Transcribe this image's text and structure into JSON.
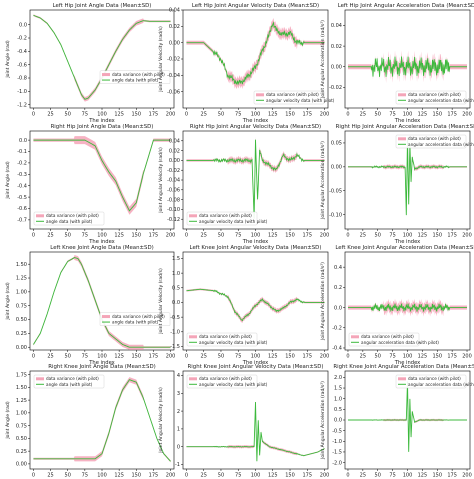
{
  "legend_labels": {
    "variance": "data variance (with pilot)",
    "angle": "angle data (with pilot)",
    "velocity": "angular velocity data (with pilot)",
    "acceleration": "angular acceleration data (with pilot)"
  },
  "colors": {
    "band": "#f4a5b8",
    "line": "#3cb93c",
    "axis": "#000000"
  },
  "chart_data": [
    {
      "type": "line",
      "title": "Left Hip Joint Angle Data (Mean±SD)",
      "xlabel": "The index",
      "ylabel": "Joint Angle (rad)",
      "xlim": [
        -5,
        205
      ],
      "ylim": [
        -1.25,
        0.22
      ],
      "xticks": [
        0,
        25,
        50,
        75,
        100,
        125,
        150,
        175,
        200
      ],
      "yticks": [
        0.0,
        -0.2,
        -0.4,
        -0.6,
        -0.8,
        -1.0,
        -1.2
      ],
      "ytick_labels": [
        "0.0",
        "-0.2",
        "-0.4",
        "-0.6",
        "-0.8",
        "-1.0",
        "-1.2"
      ],
      "legend": "center-right",
      "legend_kind": "angle",
      "noise": 0,
      "x": [
        0,
        10,
        20,
        30,
        40,
        50,
        60,
        70,
        75,
        80,
        90,
        100,
        110,
        120,
        130,
        140,
        150,
        160,
        170,
        175,
        200
      ],
      "y": [
        0.14,
        0.1,
        0.02,
        -0.12,
        -0.3,
        -0.55,
        -0.8,
        -1.05,
        -1.12,
        -1.1,
        -0.98,
        -0.8,
        -0.6,
        -0.4,
        -0.22,
        -0.08,
        0.02,
        0.06,
        0.05,
        0.05,
        0.05
      ],
      "sd": 0.035
    },
    {
      "type": "line",
      "title": "Left Hip Joint Angular Velocity Data (Mean±SD)",
      "xlabel": "The index",
      "ylabel": "Joint Angular Velocity (rad/s)",
      "xlim": [
        -5,
        205
      ],
      "ylim": [
        -0.08,
        0.04
      ],
      "xticks": [
        0,
        25,
        50,
        75,
        100,
        125,
        150,
        175,
        200
      ],
      "yticks": [
        0.04,
        0.02,
        0.0,
        -0.02,
        -0.04,
        -0.06
      ],
      "ytick_labels": [
        "0.04",
        "0.02",
        "0.00",
        "-0.02",
        "-0.04",
        "-0.06"
      ],
      "legend": "lower-right",
      "legend_kind": "velocity",
      "noise": 0.004,
      "x": [
        0,
        25,
        50,
        60,
        75,
        85,
        100,
        110,
        120,
        125,
        130,
        140,
        150,
        160,
        165,
        175,
        200
      ],
      "y": [
        0.0,
        0.0,
        -0.02,
        -0.04,
        -0.05,
        -0.045,
        -0.03,
        -0.01,
        0.01,
        0.025,
        0.015,
        0.01,
        0.012,
        0.0,
        0.0,
        0.0,
        0.0
      ],
      "sd": 0.006
    },
    {
      "type": "line",
      "title": "Left Hip Joint Angular Acceleration Data (Mean±SD)",
      "xlabel": "The index",
      "ylabel": "Joint Angular Acceleration (rad/s²)",
      "xlim": [
        -5,
        205
      ],
      "ylim": [
        -0.04,
        0.055
      ],
      "xticks": [
        0,
        25,
        50,
        75,
        100,
        125,
        150,
        175,
        200
      ],
      "yticks": [
        0.04,
        0.02,
        0.0,
        -0.02
      ],
      "ytick_labels": [
        "0.04",
        "0.02",
        "0.00",
        "-0.02"
      ],
      "legend": "lower-right",
      "legend_kind": "acceleration",
      "noise": 0.01,
      "x": [
        0,
        50,
        100,
        150,
        200
      ],
      "y": [
        0.0,
        0.0,
        0.0,
        0.0,
        0.0
      ],
      "sd": 0.006
    },
    {
      "type": "line",
      "title": "Right Hip Joint Angle Data (Mean±SD)",
      "xlabel": "The index",
      "ylabel": "Joint Angle (rad)",
      "xlim": [
        -5,
        205
      ],
      "ylim": [
        -0.78,
        0.08
      ],
      "xticks": [
        0,
        25,
        50,
        75,
        100,
        125,
        150,
        175,
        200
      ],
      "yticks": [
        0.0,
        -0.1,
        -0.2,
        -0.3,
        -0.4,
        -0.5,
        -0.6,
        -0.7
      ],
      "ytick_labels": [
        "0.0",
        "-0.1",
        "-0.2",
        "-0.3",
        "-0.4",
        "-0.5",
        "-0.6",
        "-0.7"
      ],
      "legend": "lower-left",
      "legend_kind": "angle",
      "noise": 0,
      "x": [
        0,
        25,
        50,
        75,
        90,
        100,
        110,
        120,
        130,
        140,
        150,
        160,
        170,
        175,
        200
      ],
      "y": [
        0.0,
        0.0,
        0.0,
        0.0,
        -0.05,
        -0.18,
        -0.28,
        -0.36,
        -0.5,
        -0.62,
        -0.55,
        -0.3,
        -0.1,
        0.0,
        0.0
      ],
      "sd": 0.035
    },
    {
      "type": "line",
      "title": "Right Hip Joint Angular Velocity Data (Mean±SD)",
      "xlabel": "The index",
      "ylabel": "Joint Angular Velocity (rad/s)",
      "xlim": [
        -5,
        205
      ],
      "ylim": [
        -0.14,
        0.06
      ],
      "xticks": [
        0,
        25,
        50,
        75,
        100,
        125,
        150,
        175,
        200
      ],
      "yticks": [
        0.04,
        0.02,
        0.0,
        -0.02,
        -0.04,
        -0.06,
        -0.08,
        -0.1,
        -0.12
      ],
      "ytick_labels": [
        "0.04",
        "0.02",
        "0.00",
        "-0.02",
        "-0.04",
        "-0.06",
        "-0.08",
        "-0.10",
        "-0.12"
      ],
      "legend": "lower-left",
      "legend_kind": "velocity",
      "noise": 0.004,
      "x": [
        0,
        25,
        50,
        75,
        90,
        95,
        98,
        100,
        103,
        106,
        110,
        120,
        130,
        140,
        150,
        160,
        170,
        175,
        200
      ],
      "y": [
        0.0,
        0.0,
        0.0,
        0.0,
        0.0,
        0.0,
        -0.12,
        0.04,
        -0.08,
        0.02,
        0.0,
        -0.01,
        -0.02,
        0.01,
        0.0,
        0.01,
        0.0,
        0.0,
        0.0
      ],
      "sd": 0.006
    },
    {
      "type": "line",
      "title": "Right Hip Joint Angular Acceleration Data (Mean±SD)",
      "xlabel": "The index",
      "ylabel": "Joint Angular Acceleration (rad/s²)",
      "xlim": [
        -5,
        205
      ],
      "ylim": [
        -0.13,
        0.075
      ],
      "xticks": [
        0,
        25,
        50,
        75,
        100,
        125,
        150,
        175,
        200
      ],
      "yticks": [
        0.05,
        0.0,
        -0.05,
        -0.1
      ],
      "ytick_labels": [
        "0.05",
        "0.00",
        "-0.05",
        "-0.10"
      ],
      "legend": "upper-right",
      "legend_kind": "acceleration",
      "noise": 0.002,
      "x": [
        0,
        90,
        96,
        98,
        100,
        102,
        104,
        106,
        108,
        112,
        120,
        150,
        200
      ],
      "y": [
        0.0,
        0.0,
        0.0,
        -0.1,
        0.06,
        -0.08,
        0.05,
        -0.03,
        0.02,
        -0.005,
        0.0,
        0.0,
        0.0
      ],
      "sd": 0.004
    },
    {
      "type": "line",
      "title": "Left Knee Joint Angle Data (Mean±SD)",
      "xlabel": "The index",
      "ylabel": "Joint Angle (rad)",
      "xlim": [
        -5,
        205
      ],
      "ylim": [
        -0.05,
        1.72
      ],
      "xticks": [
        0,
        25,
        50,
        75,
        100,
        125,
        150,
        175,
        200
      ],
      "yticks": [
        0.0,
        0.25,
        0.5,
        0.75,
        1.0,
        1.25,
        1.5
      ],
      "ytick_labels": [
        "0.00",
        "0.25",
        "0.50",
        "0.75",
        "1.00",
        "1.25",
        "1.50"
      ],
      "legend": "center-right",
      "legend_kind": "angle",
      "noise": 0,
      "x": [
        0,
        10,
        20,
        30,
        40,
        50,
        60,
        65,
        70,
        80,
        90,
        100,
        110,
        120,
        125,
        130,
        140,
        150,
        200
      ],
      "y": [
        0.05,
        0.25,
        0.6,
        1.0,
        1.35,
        1.55,
        1.62,
        1.6,
        1.5,
        1.2,
        0.85,
        0.5,
        0.25,
        0.15,
        0.1,
        0.05,
        0.0,
        0.0,
        0.0
      ],
      "sd": 0.045
    },
    {
      "type": "line",
      "title": "Left Knee Joint Angular Velocity Data (Mean±SD)",
      "xlabel": "The index",
      "ylabel": "Joint Angular Velocity (rad/s)",
      "xlim": [
        -5,
        205
      ],
      "ylim": [
        -1.62,
        1.72
      ],
      "xticks": [
        0,
        25,
        50,
        75,
        100,
        125,
        150,
        175,
        200
      ],
      "yticks": [
        1.5,
        1.0,
        0.5,
        0.0,
        -0.5,
        -1.0,
        -1.5
      ],
      "ytick_labels": [
        "1.5",
        "1.0",
        "0.5",
        "0.0",
        "-0.5",
        "-1.0",
        "-1.5"
      ],
      "legend": "lower-left",
      "legend_kind": "velocity",
      "noise": 0.04,
      "x": [
        0,
        20,
        40,
        60,
        70,
        80,
        90,
        100,
        110,
        120,
        130,
        140,
        150,
        160,
        170,
        175,
        200
      ],
      "y": [
        0.4,
        0.45,
        0.4,
        0.2,
        -0.3,
        -0.6,
        -0.4,
        -0.1,
        0.1,
        -0.1,
        -0.3,
        -0.2,
        0.0,
        0.1,
        0.0,
        0.0,
        0.0
      ],
      "sd": 0.08
    },
    {
      "type": "line",
      "title": "Left Knee Joint Angular Acceleration Data (Mean±SD)",
      "xlabel": "The index",
      "ylabel": "Joint Angular Acceleration (rad/s²)",
      "xlim": [
        -5,
        205
      ],
      "ylim": [
        -0.42,
        0.55
      ],
      "xticks": [
        0,
        25,
        50,
        75,
        100,
        125,
        150,
        175,
        200
      ],
      "yticks": [
        0.4,
        0.2,
        0.0,
        -0.2,
        -0.4
      ],
      "ytick_labels": [
        "0.4",
        "0.2",
        "0.0",
        "-0.2",
        "-0.4"
      ],
      "legend": "lower-left",
      "legend_kind": "acceleration",
      "noise": 0.04,
      "x": [
        0,
        50,
        100,
        150,
        200
      ],
      "y": [
        0.0,
        0.0,
        0.0,
        0.0,
        0.0
      ],
      "sd": 0.05
    },
    {
      "type": "line",
      "title": "Right Knee Joint Angle Data (Mean±SD)",
      "xlabel": "The index",
      "ylabel": "Joint Angle (rad)",
      "xlim": [
        -5,
        205
      ],
      "ylim": [
        -0.1,
        1.82
      ],
      "xticks": [
        0,
        25,
        50,
        75,
        100,
        125,
        150,
        175,
        200
      ],
      "yticks": [
        1.75,
        1.5,
        1.25,
        1.0,
        0.75,
        0.5,
        0.25,
        0.0
      ],
      "ytick_labels": [
        "1.75",
        "1.50",
        "1.25",
        "1.00",
        "0.75",
        "0.50",
        "0.25",
        "0.00"
      ],
      "legend": "upper-left",
      "legend_kind": "angle",
      "noise": 0,
      "x": [
        0,
        25,
        50,
        75,
        90,
        100,
        110,
        120,
        130,
        140,
        150,
        160,
        170,
        180,
        190,
        200
      ],
      "y": [
        0.1,
        0.1,
        0.1,
        0.1,
        0.1,
        0.2,
        0.6,
        1.1,
        1.45,
        1.65,
        1.6,
        1.3,
        0.9,
        0.5,
        0.2,
        0.05
      ],
      "sd": 0.05
    },
    {
      "type": "line",
      "title": "Right Knee Joint Angular Velocity Data (Mean±SD)",
      "xlabel": "The index",
      "ylabel": "Joint Angular Velocity (rad/s)",
      "xlim": [
        -5,
        205
      ],
      "ylim": [
        -1.25,
        4.25
      ],
      "xticks": [
        0,
        25,
        50,
        75,
        100,
        125,
        150,
        175,
        200
      ],
      "yticks": [
        4,
        3,
        2,
        1,
        0,
        -1
      ],
      "ytick_labels": [
        "4",
        "3",
        "2",
        "1",
        "0",
        "-1"
      ],
      "legend": "upper-left",
      "legend_kind": "velocity",
      "noise": 0.02,
      "x": [
        0,
        90,
        98,
        100,
        102,
        104,
        106,
        108,
        110,
        120,
        130,
        140,
        150,
        160,
        170,
        180,
        190,
        200
      ],
      "y": [
        0.0,
        0.0,
        0.0,
        2.5,
        -0.8,
        1.5,
        -0.5,
        0.8,
        0.3,
        0.0,
        -0.1,
        -0.2,
        -0.3,
        -0.4,
        -0.5,
        -0.4,
        -0.3,
        -0.1
      ],
      "sd": 0.08
    },
    {
      "type": "line",
      "title": "Right Knee Joint Angular Acceleration Data (Mean±SD)",
      "xlabel": "The index",
      "ylabel": "Joint Angular Acceleration (rad/s²)",
      "xlim": [
        -5,
        205
      ],
      "ylim": [
        -2.3,
        2.3
      ],
      "xticks": [
        0,
        25,
        50,
        75,
        100,
        125,
        150,
        175,
        200
      ],
      "yticks": [
        2.0,
        1.5,
        1.0,
        0.5,
        0.0,
        -0.5,
        -1.0,
        -1.5,
        -2.0
      ],
      "ytick_labels": [
        "2.0",
        "1.5",
        "1.0",
        "0.5",
        "0.0",
        "-0.5",
        "-1.0",
        "-1.5",
        "-2.0"
      ],
      "legend": "upper-right",
      "legend_kind": "acceleration",
      "noise": 0.01,
      "x": [
        0,
        95,
        98,
        100,
        102,
        104,
        106,
        108,
        112,
        120,
        150,
        200
      ],
      "y": [
        0.0,
        0.0,
        0.0,
        1.8,
        -1.5,
        1.0,
        -0.8,
        0.4,
        -0.1,
        0.0,
        0.0,
        0.0
      ],
      "sd": 0.05
    }
  ]
}
